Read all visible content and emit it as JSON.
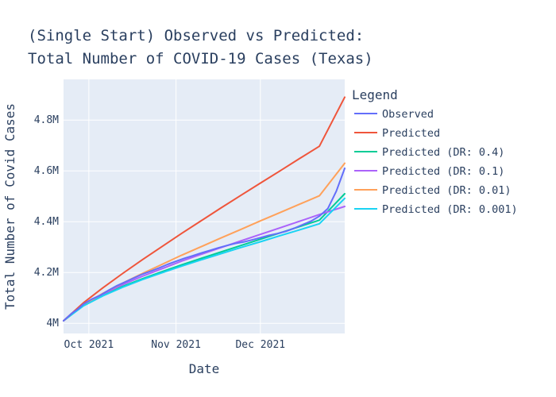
{
  "chart_data": {
    "type": "line",
    "title_lines": [
      "(Single Start) Observed vs Predicted:",
      "Total Number of COVID-19 Cases (Texas)"
    ],
    "xlabel": "Date",
    "ylabel": "Total Number of Covid Cases",
    "x_tick_labels": [
      "Oct 2021",
      "Nov 2021",
      "Dec 2021"
    ],
    "x_tick_dates": [
      "2021-10-01",
      "2021-11-01",
      "2021-12-01"
    ],
    "xlim": [
      "2021-09-22",
      "2021-12-31"
    ],
    "y_tick_labels": [
      "4M",
      "4.2M",
      "4.4M",
      "4.6M",
      "4.8M"
    ],
    "y_tick_values": [
      4000000,
      4200000,
      4400000,
      4600000,
      4800000
    ],
    "ylim": [
      3960000,
      4960000
    ],
    "grid": true,
    "plot_background": "#e5ecf6",
    "legend_title": "Legend",
    "legend_position": "right",
    "series": [
      {
        "name": "Observed",
        "color": "#636efa",
        "points": [
          [
            "2021-09-22",
            4010000
          ],
          [
            "2021-09-25",
            4040000
          ],
          [
            "2021-09-27",
            4055000
          ],
          [
            "2021-09-29",
            4075000
          ],
          [
            "2021-10-02",
            4095000
          ],
          [
            "2021-10-05",
            4110000
          ],
          [
            "2021-10-08",
            4130000
          ],
          [
            "2021-10-11",
            4148000
          ],
          [
            "2021-10-14",
            4163000
          ],
          [
            "2021-10-17",
            4178000
          ],
          [
            "2021-10-20",
            4193000
          ],
          [
            "2021-10-23",
            4205000
          ],
          [
            "2021-10-26",
            4218000
          ],
          [
            "2021-10-29",
            4232000
          ],
          [
            "2021-11-01",
            4244000
          ],
          [
            "2021-11-04",
            4256000
          ],
          [
            "2021-11-07",
            4266000
          ],
          [
            "2021-11-10",
            4277000
          ],
          [
            "2021-11-13",
            4287000
          ],
          [
            "2021-11-16",
            4297000
          ],
          [
            "2021-11-19",
            4306000
          ],
          [
            "2021-11-22",
            4314000
          ],
          [
            "2021-11-25",
            4320000
          ],
          [
            "2021-11-28",
            4328000
          ],
          [
            "2021-12-01",
            4337000
          ],
          [
            "2021-12-04",
            4346000
          ],
          [
            "2021-12-07",
            4353000
          ],
          [
            "2021-12-10",
            4362000
          ],
          [
            "2021-12-13",
            4374000
          ],
          [
            "2021-12-16",
            4388000
          ],
          [
            "2021-12-19",
            4402000
          ],
          [
            "2021-12-22",
            4422000
          ],
          [
            "2021-12-25",
            4452000
          ],
          [
            "2021-12-28",
            4520000
          ],
          [
            "2021-12-31",
            4610000
          ]
        ]
      },
      {
        "name": "Predicted",
        "color": "#ef553b",
        "points": [
          [
            "2021-09-22",
            4010000
          ],
          [
            "2021-09-29",
            4080000
          ],
          [
            "2021-10-06",
            4140000
          ],
          [
            "2021-10-13",
            4196000
          ],
          [
            "2021-10-20",
            4250000
          ],
          [
            "2021-10-27",
            4302000
          ],
          [
            "2021-11-03",
            4354000
          ],
          [
            "2021-11-10",
            4404000
          ],
          [
            "2021-11-17",
            4454000
          ],
          [
            "2021-11-24",
            4503000
          ],
          [
            "2021-12-01",
            4552000
          ],
          [
            "2021-12-08",
            4600000
          ],
          [
            "2021-12-15",
            4649000
          ],
          [
            "2021-12-22",
            4697000
          ],
          [
            "2021-12-31",
            4890000
          ]
        ]
      },
      {
        "name": "Predicted (DR: 0.4)",
        "color": "#00cc96",
        "points": [
          [
            "2021-09-22",
            4010000
          ],
          [
            "2021-09-29",
            4070000
          ],
          [
            "2021-10-06",
            4110000
          ],
          [
            "2021-10-13",
            4145000
          ],
          [
            "2021-10-20",
            4175000
          ],
          [
            "2021-10-27",
            4203000
          ],
          [
            "2021-11-03",
            4230000
          ],
          [
            "2021-11-10",
            4256000
          ],
          [
            "2021-11-17",
            4281000
          ],
          [
            "2021-11-24",
            4306000
          ],
          [
            "2021-12-01",
            4331000
          ],
          [
            "2021-12-08",
            4356000
          ],
          [
            "2021-12-15",
            4381000
          ],
          [
            "2021-12-22",
            4406000
          ],
          [
            "2021-12-31",
            4510000
          ]
        ]
      },
      {
        "name": "Predicted (DR: 0.1)",
        "color": "#ab63fa",
        "points": [
          [
            "2021-09-22",
            4010000
          ],
          [
            "2021-09-29",
            4072000
          ],
          [
            "2021-10-06",
            4115000
          ],
          [
            "2021-10-13",
            4152000
          ],
          [
            "2021-10-20",
            4185000
          ],
          [
            "2021-10-27",
            4215000
          ],
          [
            "2021-11-03",
            4245000
          ],
          [
            "2021-11-10",
            4272000
          ],
          [
            "2021-11-17",
            4298000
          ],
          [
            "2021-11-24",
            4324000
          ],
          [
            "2021-12-01",
            4350000
          ],
          [
            "2021-12-08",
            4376000
          ],
          [
            "2021-12-15",
            4402000
          ],
          [
            "2021-12-22",
            4428000
          ],
          [
            "2021-12-31",
            4460000
          ]
        ]
      },
      {
        "name": "Predicted (DR: 0.01)",
        "color": "#ffa15a",
        "points": [
          [
            "2021-09-22",
            4010000
          ],
          [
            "2021-09-29",
            4073000
          ],
          [
            "2021-10-06",
            4118000
          ],
          [
            "2021-10-13",
            4158000
          ],
          [
            "2021-10-20",
            4196000
          ],
          [
            "2021-10-27",
            4232000
          ],
          [
            "2021-11-03",
            4268000
          ],
          [
            "2021-11-10",
            4302000
          ],
          [
            "2021-11-17",
            4336000
          ],
          [
            "2021-11-24",
            4369000
          ],
          [
            "2021-12-01",
            4403000
          ],
          [
            "2021-12-08",
            4436000
          ],
          [
            "2021-12-15",
            4469000
          ],
          [
            "2021-12-22",
            4502000
          ],
          [
            "2021-12-31",
            4630000
          ]
        ]
      },
      {
        "name": "Predicted (DR: 0.001)",
        "color": "#19d3f3",
        "points": [
          [
            "2021-09-22",
            4010000
          ],
          [
            "2021-09-29",
            4068000
          ],
          [
            "2021-10-06",
            4108000
          ],
          [
            "2021-10-13",
            4142000
          ],
          [
            "2021-10-20",
            4172000
          ],
          [
            "2021-10-27",
            4199000
          ],
          [
            "2021-11-03",
            4225000
          ],
          [
            "2021-11-10",
            4250000
          ],
          [
            "2021-11-17",
            4274000
          ],
          [
            "2021-11-24",
            4298000
          ],
          [
            "2021-12-01",
            4321000
          ],
          [
            "2021-12-08",
            4345000
          ],
          [
            "2021-12-15",
            4368000
          ],
          [
            "2021-12-22",
            4392000
          ],
          [
            "2021-12-31",
            4492000
          ]
        ]
      }
    ]
  }
}
